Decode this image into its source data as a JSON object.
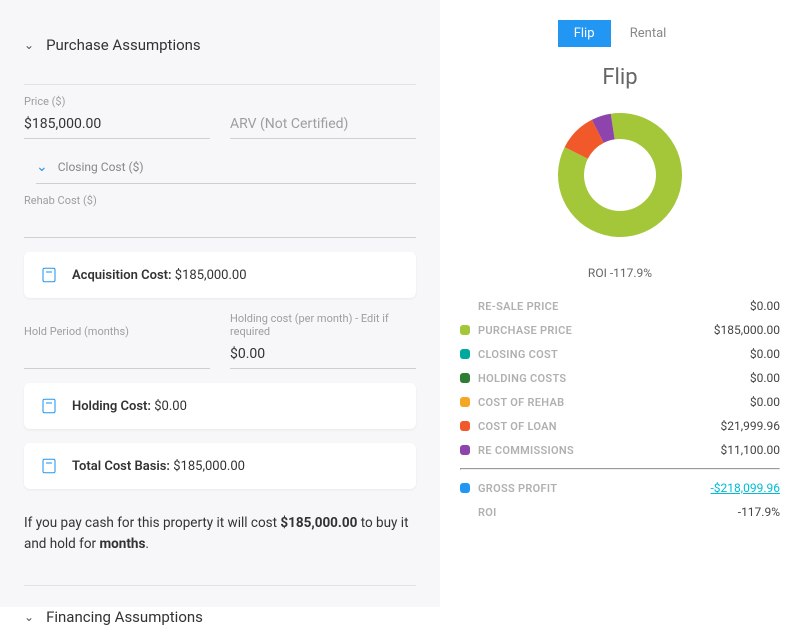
{
  "left": {
    "section1_title": "Purchase Assumptions",
    "price_label": "Price ($)",
    "price_value": "$185,000.00",
    "arv_placeholder": "ARV (Not Certified)",
    "closing_label": "Closing Cost ($)",
    "rehab_label": "Rehab Cost ($)",
    "acq_label": "Acquisition Cost:",
    "acq_value": "$185,000.00",
    "hold_period_label": "Hold Period (months)",
    "holding_note": "Holding cost (per month) - Edit if required",
    "holding_month_value": "$0.00",
    "holding_label": "Holding Cost:",
    "holding_value": "$0.00",
    "total_label": "Total Cost Basis:",
    "total_value": "$185,000.00",
    "summary_pre": "If you pay cash for this property it will cost ",
    "summary_amt": "$185,000.00",
    "summary_mid": " to buy it and hold for ",
    "summary_months": "months",
    "summary_post": ".",
    "section2_title": "Financing Assumptions"
  },
  "tabs": {
    "flip": "Flip",
    "rental": "Rental"
  },
  "chart": {
    "title": "Flip",
    "roi_label": "ROI",
    "roi_value": "-117.9%",
    "slices": [
      {
        "value": 185000.0,
        "color": "#a4c639"
      },
      {
        "value": 0.0,
        "color": "#00a99d"
      },
      {
        "value": 0.0,
        "color": "#2e7d32"
      },
      {
        "value": 0.0,
        "color": "#f5a623"
      },
      {
        "value": 21999.96,
        "color": "#f1592a"
      },
      {
        "value": 11100.0,
        "color": "#8e44ad"
      }
    ],
    "bg": "#ffffff"
  },
  "lines": [
    {
      "swatch": null,
      "label": "RE-SALE PRICE",
      "value": "$0.00"
    },
    {
      "swatch": "#a4c639",
      "label": "PURCHASE PRICE",
      "value": "$185,000.00"
    },
    {
      "swatch": "#00a99d",
      "label": "CLOSING COST",
      "value": "$0.00"
    },
    {
      "swatch": "#2e7d32",
      "label": "HOLDING COSTS",
      "value": "$0.00"
    },
    {
      "swatch": "#f5a623",
      "label": "COST OF REHAB",
      "value": "$0.00"
    },
    {
      "swatch": "#f1592a",
      "label": "COST OF LOAN",
      "value": "$21,999.96"
    },
    {
      "swatch": "#8e44ad",
      "label": "RE COMMISSIONS",
      "value": "$11,100.00"
    }
  ],
  "gross": {
    "swatch": "#2196f3",
    "label": "GROSS PROFIT",
    "value": "-$218,099.96"
  },
  "roi_line": {
    "label": "ROI",
    "value": "-117.9%"
  }
}
